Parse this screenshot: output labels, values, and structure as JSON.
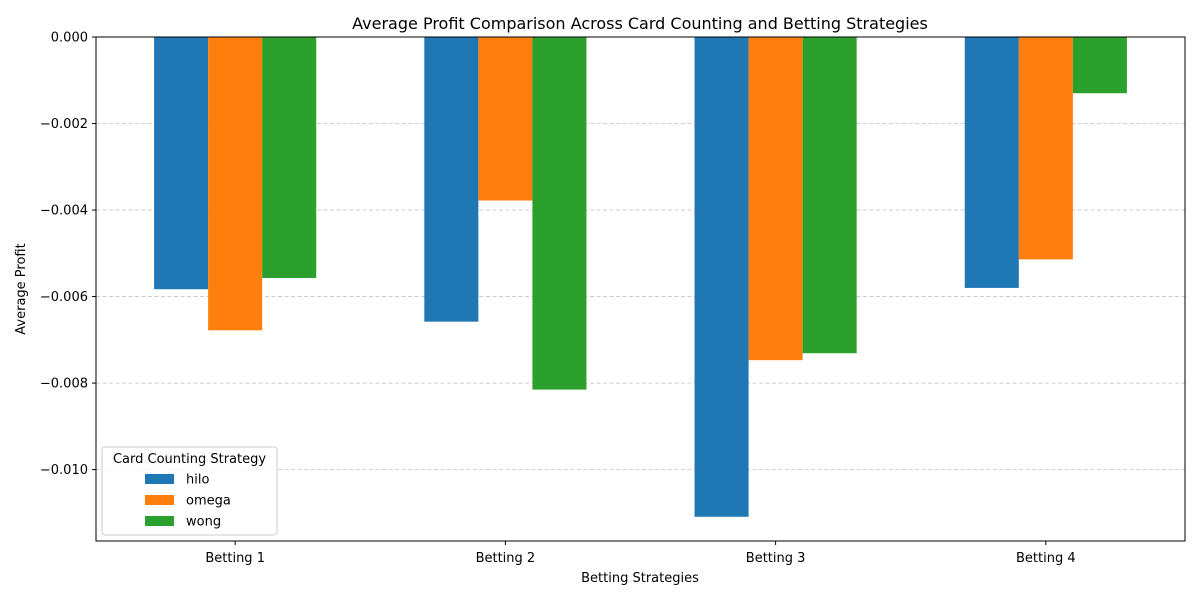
{
  "chart_data": {
    "type": "bar",
    "title": "Average Profit Comparison Across Card Counting and Betting Strategies",
    "xlabel": "Betting Strategies",
    "ylabel": "Average Profit",
    "categories": [
      "Betting 1",
      "Betting 2",
      "Betting 3",
      "Betting 4"
    ],
    "series": [
      {
        "name": "hilo",
        "color": "#1f77b4",
        "values": [
          -0.00583,
          -0.00658,
          -0.01109,
          -0.0058
        ]
      },
      {
        "name": "omega",
        "color": "#ff7f0e",
        "values": [
          -0.00678,
          -0.00378,
          -0.00747,
          -0.00514
        ]
      },
      {
        "name": "wong",
        "color": "#2ca02c",
        "values": [
          -0.00557,
          -0.00815,
          -0.00731,
          -0.0013
        ]
      }
    ],
    "ylim": [
      -0.01165,
      0.0
    ],
    "yticks": [
      0.0,
      -0.002,
      -0.004,
      -0.006,
      -0.008,
      -0.01
    ],
    "ytick_labels": [
      "0.000",
      "−0.002",
      "−0.004",
      "−0.006",
      "−0.008",
      "−0.010"
    ],
    "grid": {
      "axis": "y",
      "style": "dashed",
      "color": "#c4c4c4"
    },
    "legend": {
      "title": "Card Counting Strategy",
      "placement": "lower-left"
    }
  }
}
